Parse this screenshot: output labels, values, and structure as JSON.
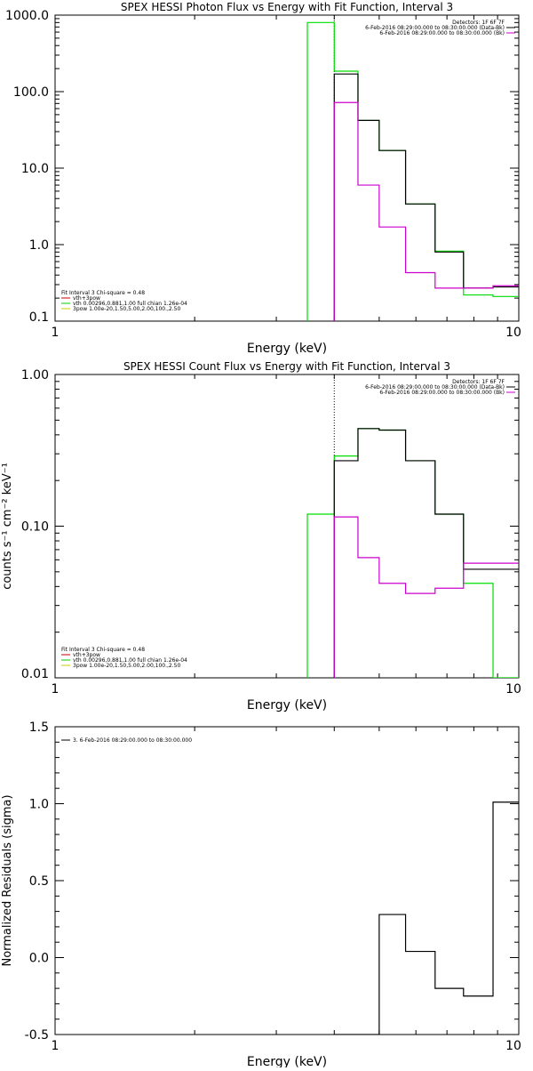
{
  "chart_data": [
    {
      "type": "line",
      "step": true,
      "title": "SPEX HESSI Photon Flux vs Energy with Fit Function, Interval 3",
      "xlabel": "Energy (keV)",
      "ylabel": "",
      "xscale": "log",
      "yscale": "log",
      "xlim": [
        1,
        10
      ],
      "ylim": [
        0.1,
        1000
      ],
      "xticks": [
        1,
        10
      ],
      "xtick_labels": [
        "1",
        "10"
      ],
      "yticks": [
        0.1,
        1,
        10,
        100,
        1000
      ],
      "ytick_labels": [
        "0.1",
        "1.0",
        "10.0",
        "100.0",
        "1000.0"
      ],
      "vline": {
        "x": 4.0
      },
      "legend_right": {
        "placement": "top-right",
        "lines": [
          {
            "text": "Detectors: 1F 6F 7F",
            "color": ""
          },
          {
            "text": "6-Feb-2016 08:29:00.000 to 08:30:00.000 (Data-Bk)",
            "color": "#000000"
          },
          {
            "text": "6-Feb-2016 08:29:00.000 to 08:30:00.000 (Bk)",
            "color": "#cc00cc"
          }
        ]
      },
      "legend_left": {
        "placement": "bottom-left",
        "lines": [
          {
            "text": "Fit Interval 3   Chi-square = 0.48",
            "color": ""
          },
          {
            "text": "vth+3pow",
            "color": "#cc0000"
          },
          {
            "text": "vth 0.00296,0.881,1.00  full chian 1.26e-04",
            "color": "#00cc00"
          },
          {
            "text": "3pow 1.00e-20,1.50,5.00,2.00,100.,2.50",
            "color": "#cccc00"
          }
        ]
      },
      "series": [
        {
          "color": "#00dd00",
          "edges": [
            3.5,
            4.0,
            4.5,
            5.0,
            5.7,
            6.6,
            7.6,
            8.8,
            10.0
          ],
          "values": [
            800,
            185,
            42,
            17,
            3.4,
            0.82,
            0.22,
            0.21
          ]
        },
        {
          "color": "#000000",
          "edges": [
            4.0,
            4.5,
            5.0,
            5.7,
            6.6,
            7.6,
            8.8,
            10.0
          ],
          "values": [
            170,
            42,
            17,
            3.4,
            0.8,
            0.27,
            0.28
          ]
        },
        {
          "color": "#cc00cc",
          "edges": [
            4.0,
            4.5,
            5.0,
            5.7,
            6.6,
            7.6,
            8.8,
            10.0
          ],
          "values": [
            72,
            6.0,
            1.7,
            0.43,
            0.27,
            0.27,
            0.29
          ]
        }
      ]
    },
    {
      "type": "line",
      "step": true,
      "title": "SPEX HESSI Count Flux vs Energy with Fit Function, Interval 3",
      "xlabel": "Energy (keV)",
      "ylabel": "counts s⁻¹ cm⁻² keV⁻¹",
      "xscale": "log",
      "yscale": "log",
      "xlim": [
        1,
        10
      ],
      "ylim": [
        0.01,
        1.0
      ],
      "xticks": [
        1,
        10
      ],
      "xtick_labels": [
        "1",
        "10"
      ],
      "yticks": [
        0.01,
        0.1,
        1.0
      ],
      "ytick_labels": [
        "0.01",
        "0.10",
        "1.00"
      ],
      "vline": {
        "x": 4.0
      },
      "legend_right": {
        "placement": "top-right",
        "lines": [
          {
            "text": "Detectors: 1F 6F 7F",
            "color": ""
          },
          {
            "text": "6-Feb-2016 08:29:00.000 to 08:30:00.000 (Data-Bk)",
            "color": "#000000"
          },
          {
            "text": "6-Feb-2016 08:29:00.000 to 08:30:00.000 (Bk)",
            "color": "#cc00cc"
          }
        ]
      },
      "legend_left": {
        "placement": "bottom-left",
        "lines": [
          {
            "text": "Fit Interval 3   Chi-square = 0.48",
            "color": ""
          },
          {
            "text": "vth+3pow",
            "color": "#cc0000"
          },
          {
            "text": "vth 0.00296,0.881,1.00  full chian 1.26e-04",
            "color": "#00cc00"
          },
          {
            "text": "3pow 1.00e-20,1.50,5.00,2.00,100.,2.50",
            "color": "#cccc00"
          }
        ]
      },
      "series": [
        {
          "color": "#00dd00",
          "edges": [
            3.5,
            4.0,
            4.5,
            5.0,
            5.7,
            6.6,
            7.6,
            8.8,
            10.0
          ],
          "values": [
            0.12,
            0.29,
            0.44,
            0.43,
            0.27,
            0.12,
            0.042,
            0.01
          ]
        },
        {
          "color": "#000000",
          "edges": [
            4.0,
            4.5,
            5.0,
            5.7,
            6.6,
            7.6,
            8.8,
            10.0
          ],
          "values": [
            0.27,
            0.44,
            0.43,
            0.27,
            0.12,
            0.052,
            0.052
          ]
        },
        {
          "color": "#cc00cc",
          "edges": [
            4.0,
            4.5,
            5.0,
            5.7,
            6.6,
            7.6,
            8.8,
            10.0
          ],
          "values": [
            0.115,
            0.062,
            0.042,
            0.036,
            0.039,
            0.057,
            0.057
          ]
        }
      ]
    },
    {
      "type": "line",
      "step": true,
      "title": "",
      "xlabel": "Energy (keV)",
      "ylabel": "Normalized Residuals (sigma)",
      "xscale": "log",
      "yscale": "linear",
      "xlim": [
        1,
        10
      ],
      "ylim": [
        -0.5,
        1.5
      ],
      "xticks": [
        1,
        10
      ],
      "xtick_labels": [
        "1",
        "10"
      ],
      "yticks": [
        -0.5,
        0.0,
        0.5,
        1.0,
        1.5
      ],
      "ytick_labels": [
        "-0.5",
        "0.0",
        "0.5",
        "1.0",
        "1.5"
      ],
      "legend_left": {
        "placement": "top-left",
        "lines": [
          {
            "text": "3.  6-Feb-2016 08:29:00.000 to 08:30:00.000",
            "color": "#000000"
          }
        ]
      },
      "series": [
        {
          "color": "#000000",
          "edges": [
            4.0,
            4.5,
            5.0,
            5.7,
            6.6,
            7.6,
            8.8,
            10.0
          ],
          "values": [
            -0.5,
            -0.5,
            0.28,
            0.04,
            -0.2,
            -0.25,
            1.01
          ]
        }
      ]
    }
  ]
}
